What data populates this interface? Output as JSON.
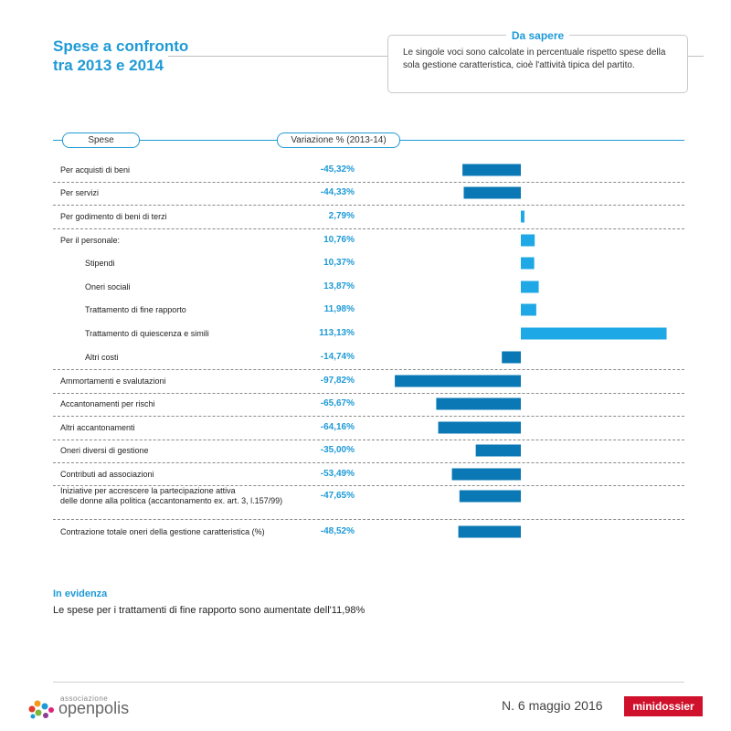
{
  "header": {
    "title_line1": "Spese a confronto",
    "title_line2": "tra 2013 e 2014"
  },
  "info_box": {
    "title": "Da sapere",
    "text": "Le singole voci sono calcolate in percentuale rispetto spese della sola gestione caratteristica, cioè l'attività tipica del partito."
  },
  "columns": {
    "spese": "Spese",
    "variazione": "Variazione % (2013-14)"
  },
  "colors": {
    "negative": "#0a78b4",
    "positive": "#1ea8e6",
    "accent": "#1e9ad6",
    "brand_red": "#d0112b"
  },
  "chart_data": {
    "type": "bar",
    "orientation": "horizontal",
    "unit": "%",
    "categories": [
      "Per acquisti di beni",
      "Per servizi",
      "Per godimento di beni di terzi",
      "Per il personale:",
      "Stipendi",
      "Oneri sociali",
      "Trattamento di fine rapporto",
      "Trattamento di quiescenza e simili",
      "Altri costi",
      "Ammortamenti e svalutazioni",
      "Accantonamenti per rischi",
      "Altri accantonamenti",
      "Oneri diversi di gestione",
      "Contributi ad associazioni",
      "Iniziative per accrescere la partecipazione attiva delle donne alla politica (accantonamento ex. art. 3, l.157/99)",
      "Contrazione totale oneri della gestione caratteristica (%)"
    ],
    "values": [
      -45.32,
      -44.33,
      2.79,
      10.76,
      10.37,
      13.87,
      11.98,
      113.13,
      -14.74,
      -97.82,
      -65.67,
      -64.16,
      -35.0,
      -53.49,
      -47.65,
      -48.52
    ],
    "value_labels": [
      "-45,32%",
      "-44,33%",
      "2,79%",
      "10,76%",
      "10,37%",
      "13,87%",
      "11,98%",
      "113,13%",
      "-14,74%",
      "-97,82%",
      "-65,67%",
      "-64,16%",
      "-35,00%",
      "-53,49%",
      "-47,65%",
      "-48,52%"
    ],
    "label_lines": [
      [
        "Per acquisti di beni"
      ],
      [
        "Per servizi"
      ],
      [
        "Per godimento di beni di terzi"
      ],
      [
        "Per il personale:"
      ],
      [
        "Stipendi"
      ],
      [
        "Oneri sociali"
      ],
      [
        "Trattamento di fine rapporto"
      ],
      [
        "Trattamento di quiescenza e simili"
      ],
      [
        "Altri costi"
      ],
      [
        "Ammortamenti e svalutazioni"
      ],
      [
        "Accantonamenti per rischi"
      ],
      [
        "Altri accantonamenti"
      ],
      [
        "Oneri diversi di gestione"
      ],
      [
        "Contributi ad associazioni"
      ],
      [
        "Iniziative per accrescere la partecipazione attiva",
        "delle donne alla politica (accantonamento ex. art. 3, l.157/99)"
      ],
      [
        "Contrazione totale oneri della gestione caratteristica (%)"
      ]
    ],
    "indented": [
      false,
      false,
      false,
      false,
      true,
      true,
      true,
      true,
      true,
      false,
      false,
      false,
      false,
      false,
      false,
      false
    ],
    "xlim": [
      -100,
      115
    ]
  },
  "evidence": {
    "title": "In evidenza",
    "text": "Le spese per i trattamenti di fine rapporto sono aumentate dell'11,98%"
  },
  "footer": {
    "logo_small": "associazione",
    "logo_big": "openpolis",
    "issue": "N. 6 maggio 2016",
    "badge": "minidossier"
  }
}
